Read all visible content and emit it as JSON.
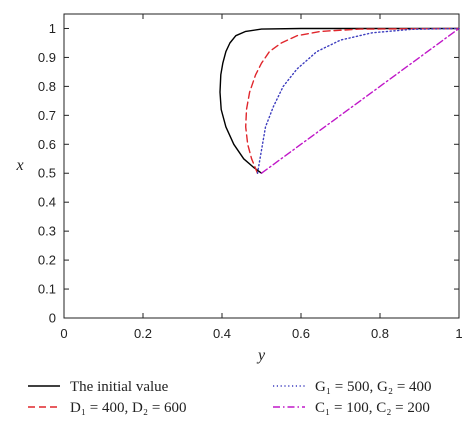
{
  "chart_data": {
    "type": "line",
    "title": "",
    "xlabel": "y",
    "ylabel": "x",
    "xlim": [
      0,
      1
    ],
    "ylim": [
      0,
      1.05
    ],
    "grid": false,
    "legend_position": "below",
    "x_ticks": [
      "0",
      "0.2",
      "0.4",
      "0.6",
      "0.8",
      "1"
    ],
    "y_ticks": [
      "0",
      "0.1",
      "0.2",
      "0.3",
      "0.4",
      "0.5",
      "0.6",
      "0.7",
      "0.8",
      "0.9",
      "1"
    ],
    "series": [
      {
        "name": "The initial value",
        "color": "#000000",
        "style": "solid",
        "points": [
          [
            0.5,
            0.5
          ],
          [
            0.48,
            0.52
          ],
          [
            0.455,
            0.55
          ],
          [
            0.43,
            0.6
          ],
          [
            0.41,
            0.66
          ],
          [
            0.398,
            0.72
          ],
          [
            0.395,
            0.78
          ],
          [
            0.397,
            0.84
          ],
          [
            0.402,
            0.88
          ],
          [
            0.41,
            0.92
          ],
          [
            0.42,
            0.95
          ],
          [
            0.435,
            0.975
          ],
          [
            0.46,
            0.99
          ],
          [
            0.5,
            0.998
          ],
          [
            0.6,
            1.0
          ],
          [
            1.0,
            1.0
          ]
        ]
      },
      {
        "name": "D₁ = 400, D₂ = 600",
        "color": "#e0262c",
        "style": "dashed",
        "points": [
          [
            0.49,
            0.5
          ],
          [
            0.475,
            0.55
          ],
          [
            0.465,
            0.6
          ],
          [
            0.46,
            0.66
          ],
          [
            0.462,
            0.72
          ],
          [
            0.47,
            0.78
          ],
          [
            0.485,
            0.84
          ],
          [
            0.5,
            0.88
          ],
          [
            0.52,
            0.92
          ],
          [
            0.55,
            0.95
          ],
          [
            0.59,
            0.975
          ],
          [
            0.65,
            0.99
          ],
          [
            0.75,
            0.998
          ],
          [
            1.0,
            1.0
          ]
        ]
      },
      {
        "name": "G₁ = 500, G₂ = 400",
        "color": "#3d3dbf",
        "style": "dotted",
        "points": [
          [
            0.49,
            0.5
          ],
          [
            0.5,
            0.58
          ],
          [
            0.51,
            0.66
          ],
          [
            0.53,
            0.73
          ],
          [
            0.555,
            0.8
          ],
          [
            0.59,
            0.86
          ],
          [
            0.64,
            0.92
          ],
          [
            0.7,
            0.96
          ],
          [
            0.78,
            0.985
          ],
          [
            0.88,
            0.997
          ],
          [
            1.0,
            1.0
          ]
        ]
      },
      {
        "name": "C₁ = 100, C₂ = 200",
        "color": "#c018c8",
        "style": "dashdot",
        "points": [
          [
            0.5,
            0.5
          ],
          [
            1.0,
            1.0
          ]
        ]
      }
    ]
  }
}
